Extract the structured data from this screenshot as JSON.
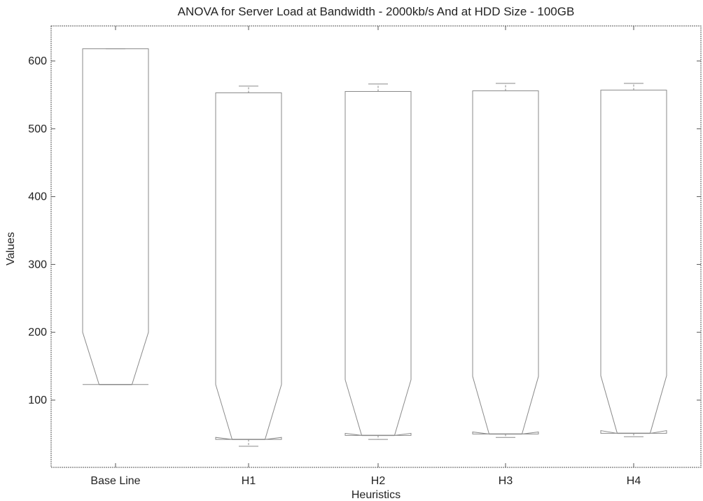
{
  "chart_data": {
    "type": "box",
    "title": "ANOVA for Server Load at Bandwidth - 2000kb/s And at HDD Size - 100GB",
    "xlabel": "Heuristics",
    "ylabel": "Values",
    "ylim": [
      0,
      660
    ],
    "yticks": [
      100,
      200,
      300,
      400,
      500,
      600
    ],
    "categories": [
      "Base Line",
      "H1",
      "H2",
      "H3",
      "H4"
    ],
    "boxes": [
      {
        "name": "Base Line",
        "whisker_low": 123,
        "q1": 123,
        "median": 123,
        "q3": 618,
        "whisker_high": 618,
        "notch_low": 123,
        "notch_high": 200
      },
      {
        "name": "H1",
        "whisker_low": 32,
        "q1": 42,
        "median": 42,
        "q3": 553,
        "whisker_high": 563,
        "notch_low": 45,
        "notch_high": 123
      },
      {
        "name": "H2",
        "whisker_low": 42,
        "q1": 48,
        "median": 48,
        "q3": 555,
        "whisker_high": 566,
        "notch_low": 51,
        "notch_high": 130
      },
      {
        "name": "H3",
        "whisker_low": 45,
        "q1": 50,
        "median": 50,
        "q3": 556,
        "whisker_high": 567,
        "notch_low": 53,
        "notch_high": 135
      },
      {
        "name": "H4",
        "whisker_low": 46,
        "q1": 51,
        "median": 51,
        "q3": 557,
        "whisker_high": 567,
        "notch_low": 55,
        "notch_high": 136
      }
    ],
    "grid": false,
    "colors": {
      "box": "#8a8a8a",
      "axis": "#555555"
    }
  }
}
